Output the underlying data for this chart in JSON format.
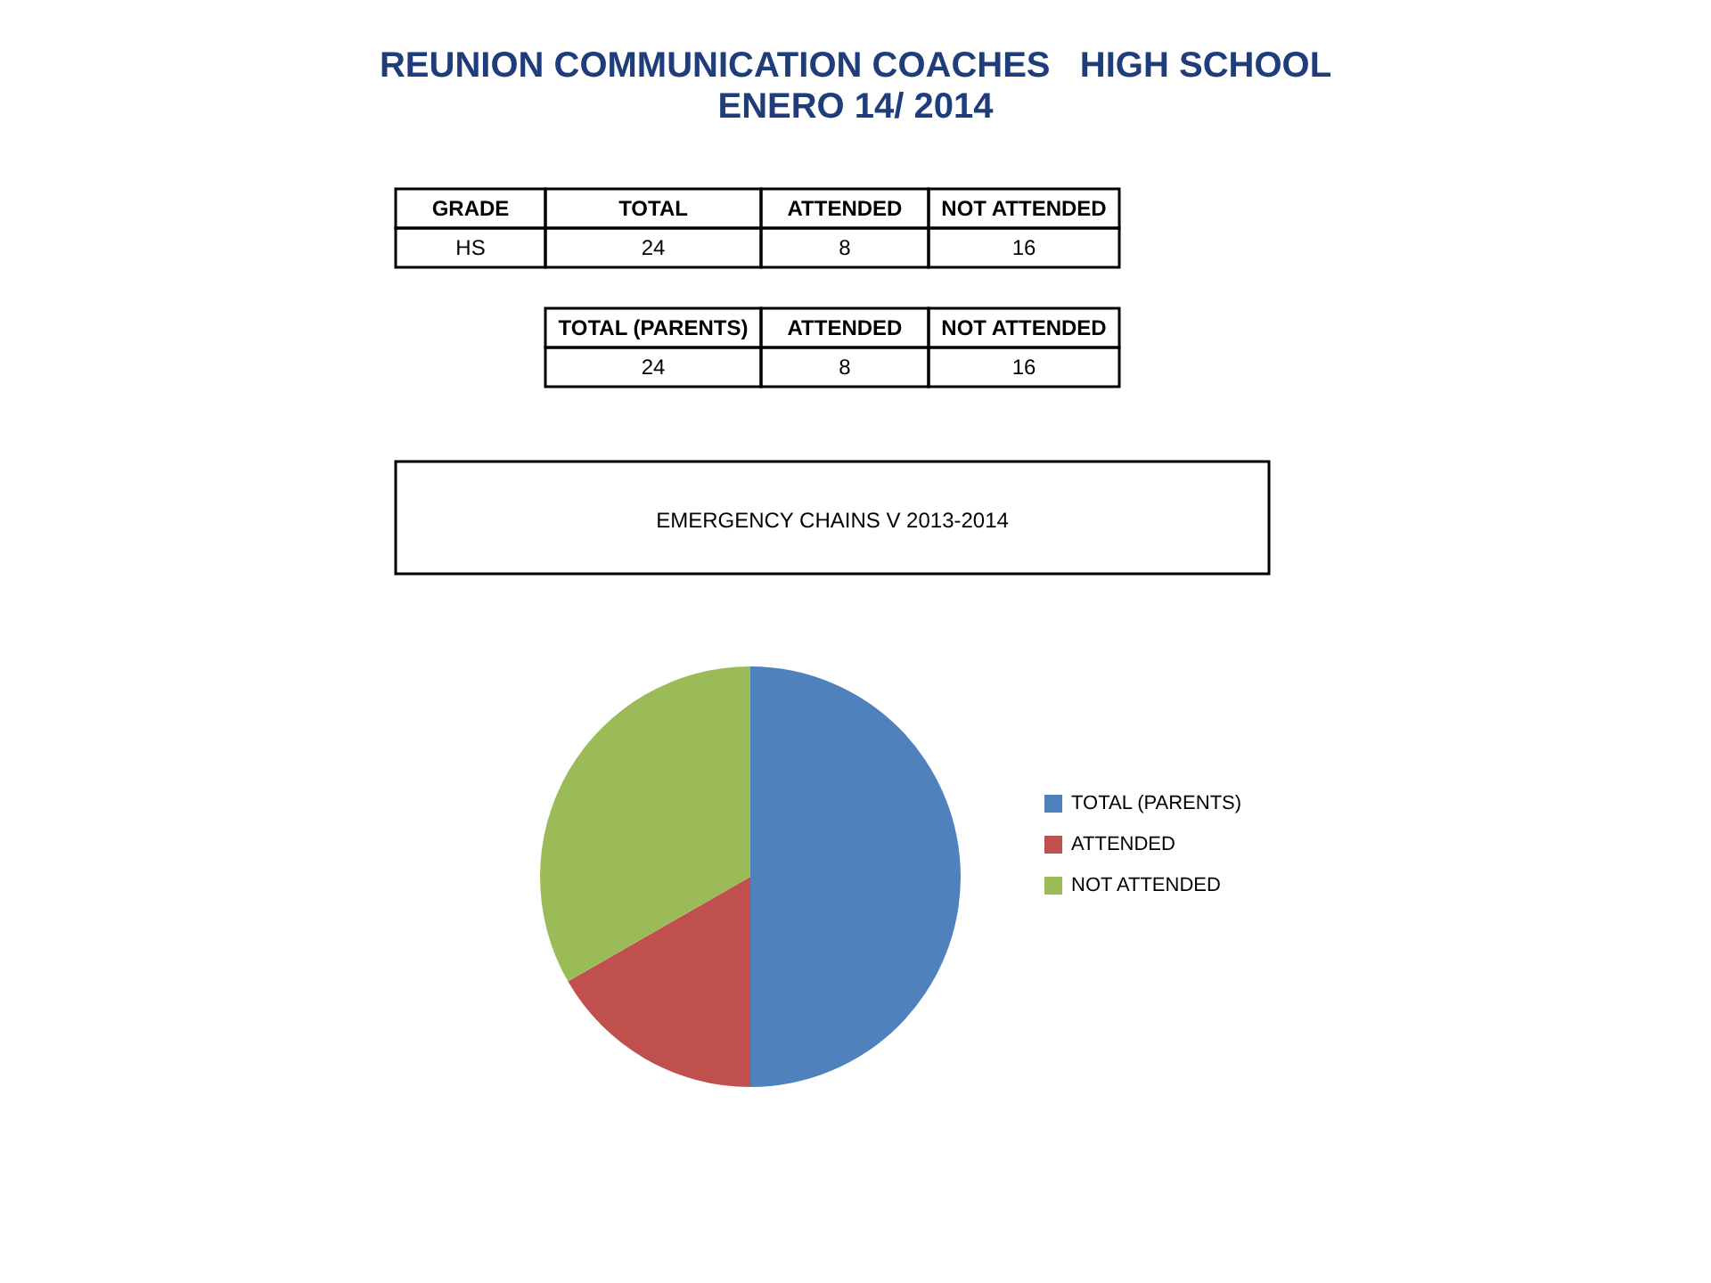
{
  "chart_data": {
    "type": "pie",
    "title": "REUNION COMMUNICATION COACHES   HIGH SCHOOL",
    "subtitle": "ENERO 14/ 2014",
    "categories": [
      "TOTAL (PARENTS)",
      "ATTENDED",
      "NOT ATTENDED"
    ],
    "values": [
      50,
      16.7,
      33.3
    ],
    "colors": [
      "#4f81bd",
      "#c0504d",
      "#9bbb59"
    ],
    "legend": "right",
    "annotations": [
      "GRADE",
      "TOTAL",
      "ATTENDED",
      "NOT ATTENDED",
      "HS",
      "24",
      "8",
      "16",
      "TOTAL (PARENTS)",
      "ATTENDED",
      "NOT ATTENDED",
      "24",
      "8",
      "16",
      "EMERGENCY CHAINS V 2013-2014"
    ]
  }
}
